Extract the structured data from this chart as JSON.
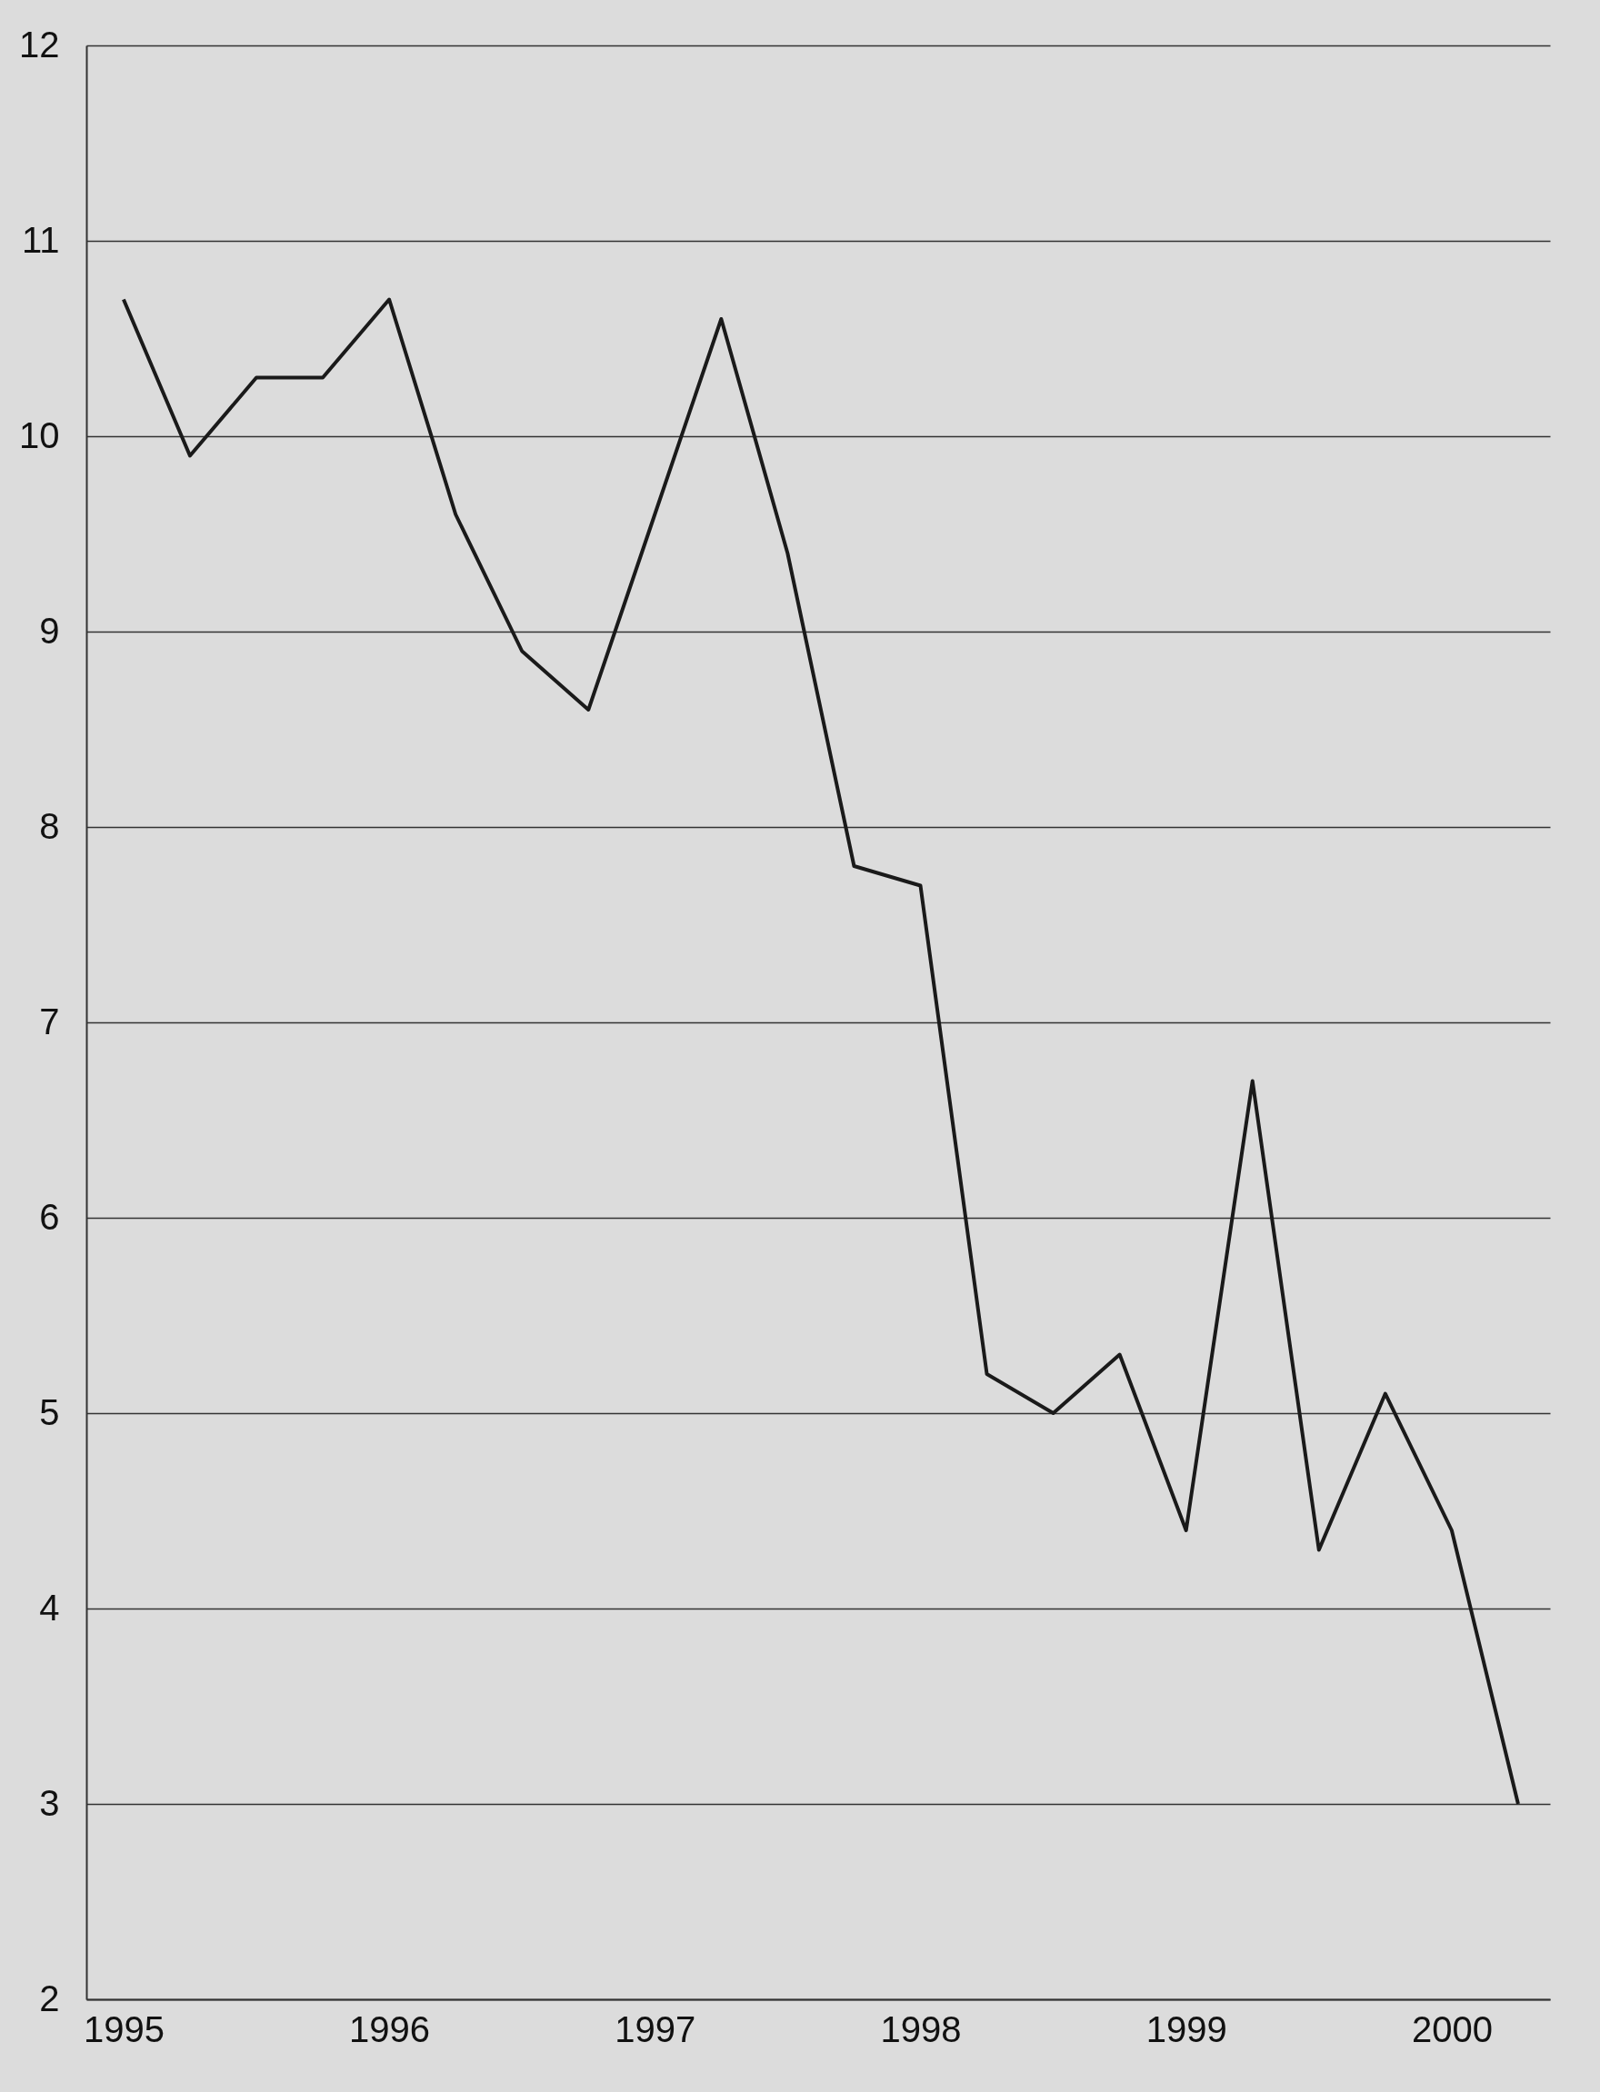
{
  "chart_data": {
    "type": "line",
    "x": [
      1995,
      1995.25,
      1995.5,
      1995.75,
      1996,
      1996.25,
      1996.5,
      1996.75,
      1997,
      1997.25,
      1997.5,
      1997.75,
      1998,
      1998.25,
      1998.5,
      1998.75,
      1999,
      1999.25,
      1999.5,
      1999.75,
      2000,
      2000.25
    ],
    "series": [
      {
        "color": "#1a1a1a",
        "values": [
          10.7,
          9.9,
          10.3,
          10.3,
          10.7,
          9.6,
          8.9,
          8.6,
          9.6,
          10.6,
          9.4,
          7.8,
          7.7,
          5.2,
          5.0,
          5.3,
          4.4,
          6.7,
          4.3,
          5.1,
          4.4,
          3.0
        ]
      }
    ],
    "xlim": [
      1994.86,
      2000.37
    ],
    "xticks": [
      1995,
      1996,
      1997,
      1998,
      1999,
      2000
    ],
    "ylim": [
      2,
      12
    ],
    "yticks": [
      2,
      3,
      4,
      5,
      6,
      7,
      8,
      9,
      10,
      11,
      12
    ],
    "grid": "y",
    "marker": "none",
    "line_style": "solid"
  }
}
